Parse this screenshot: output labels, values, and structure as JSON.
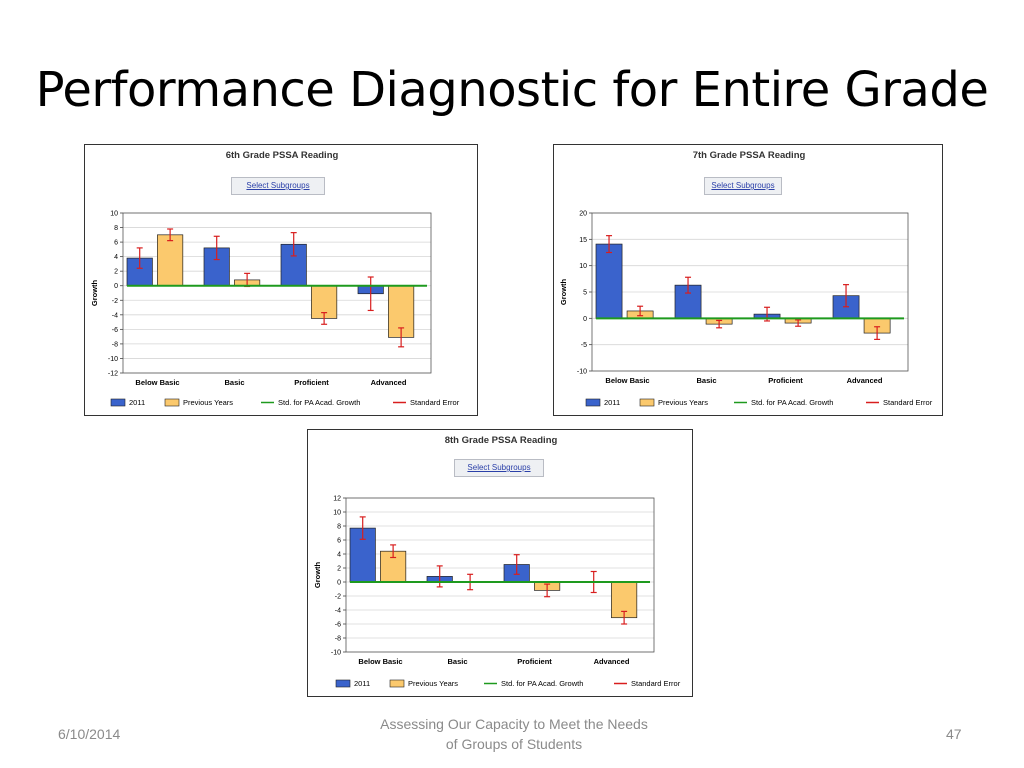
{
  "slide": {
    "title": "Performance Diagnostic for Entire Grade",
    "footer_date": "6/10/2014",
    "footer_center_line1": "Assessing Our Capacity to Meet the  Needs",
    "footer_center_line2": "of Groups of Students",
    "page_number": "47"
  },
  "colors": {
    "bar_2011": "#3a63cc",
    "bar_previous": "#fbc96d",
    "std_line": "#1e9a1e",
    "error": "#d81e1e"
  },
  "legend": [
    "2011",
    "Previous Years",
    "Std. for PA Acad. Growth",
    "Standard Error"
  ],
  "select_label": "Select Subgroups",
  "chart_data": [
    {
      "type": "bar",
      "title": "6th Grade PSSA Reading",
      "ylabel": "Growth",
      "categories": [
        "Below Basic",
        "Basic",
        "Proficient",
        "Advanced"
      ],
      "ylim": [
        -12,
        10
      ],
      "yticks": [
        10,
        8,
        6,
        4,
        2,
        0,
        -2,
        -4,
        -6,
        -8,
        -10,
        -12
      ],
      "series": [
        {
          "name": "2011",
          "values": [
            3.8,
            5.2,
            5.7,
            -1.1
          ],
          "errors": [
            1.4,
            1.6,
            1.6,
            2.3
          ]
        },
        {
          "name": "Previous Years",
          "values": [
            7.0,
            0.8,
            -4.5,
            -7.1
          ],
          "errors": [
            0.8,
            0.9,
            0.8,
            1.3
          ]
        }
      ],
      "std_line": 0,
      "grid": true,
      "legend_position": "bottom"
    },
    {
      "type": "bar",
      "title": "7th Grade PSSA Reading",
      "ylabel": "Growth",
      "categories": [
        "Below Basic",
        "Basic",
        "Proficient",
        "Advanced"
      ],
      "ylim": [
        -10,
        20
      ],
      "yticks": [
        20,
        15,
        10,
        5,
        0,
        -5,
        -10
      ],
      "series": [
        {
          "name": "2011",
          "values": [
            14.1,
            6.3,
            0.8,
            4.3
          ],
          "errors": [
            1.6,
            1.5,
            1.3,
            2.1
          ]
        },
        {
          "name": "Previous Years",
          "values": [
            1.4,
            -1.1,
            -0.9,
            -2.8
          ],
          "errors": [
            0.9,
            0.7,
            0.6,
            1.2
          ]
        }
      ],
      "std_line": 0,
      "grid": true,
      "legend_position": "bottom"
    },
    {
      "type": "bar",
      "title": "8th Grade PSSA Reading",
      "ylabel": "Growth",
      "categories": [
        "Below Basic",
        "Basic",
        "Proficient",
        "Advanced"
      ],
      "ylim": [
        -10,
        12
      ],
      "yticks": [
        12,
        10,
        8,
        6,
        4,
        2,
        0,
        -2,
        -4,
        -6,
        -8,
        -10
      ],
      "series": [
        {
          "name": "2011",
          "values": [
            7.7,
            0.8,
            2.5,
            0.0
          ],
          "errors": [
            1.6,
            1.5,
            1.4,
            1.5
          ]
        },
        {
          "name": "Previous Years",
          "values": [
            4.4,
            0.0,
            -1.2,
            -5.1
          ],
          "errors": [
            0.9,
            1.1,
            0.9,
            0.9
          ]
        }
      ],
      "std_line": 0,
      "grid": true,
      "legend_position": "bottom"
    }
  ]
}
